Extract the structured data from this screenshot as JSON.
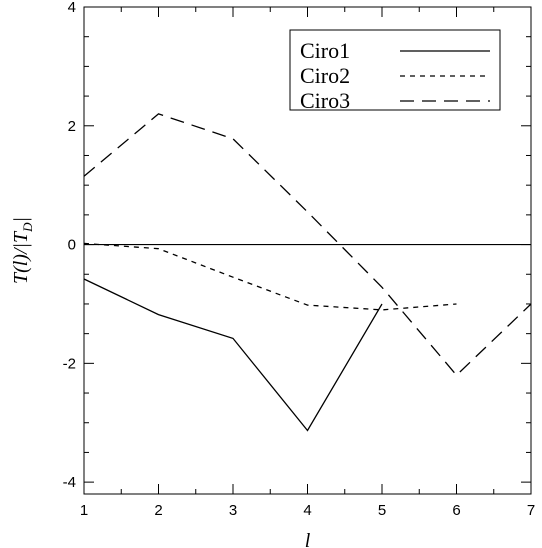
{
  "chart_data": {
    "type": "line",
    "xlabel": "l",
    "ylabel": "T(l)/|T",
    "ylabel_sub": "D",
    "xlim": [
      1,
      7
    ],
    "ylim": [
      -4.2,
      4
    ],
    "x_ticks": [
      1,
      2,
      3,
      4,
      5,
      6,
      7
    ],
    "y_ticks": [
      -4,
      -2,
      0,
      2,
      4
    ],
    "x_tick_labels": [
      "1",
      "2",
      "3",
      "4",
      "5",
      "6",
      "7"
    ],
    "y_tick_labels": [
      "-4",
      "-2",
      "0",
      "2",
      "4"
    ],
    "grid": false,
    "legend_position": "top-right",
    "reference_line_y": 0,
    "series": [
      {
        "name": "Ciro1",
        "dash": "solid",
        "x": [
          1,
          2,
          3,
          4,
          5
        ],
        "y": [
          -0.58,
          -1.18,
          -1.58,
          -3.13,
          -1.0
        ]
      },
      {
        "name": "Ciro2",
        "dash": "dotted",
        "x": [
          1,
          2,
          3,
          4,
          5,
          6
        ],
        "y": [
          0.02,
          -0.07,
          -0.55,
          -1.02,
          -1.1,
          -1.0
        ]
      },
      {
        "name": "Ciro3",
        "dash": "dashed",
        "x": [
          1,
          2,
          3,
          4,
          5,
          6,
          7
        ],
        "y": [
          1.15,
          2.2,
          1.78,
          0.55,
          -0.72,
          -2.2,
          -1.0
        ]
      }
    ]
  }
}
